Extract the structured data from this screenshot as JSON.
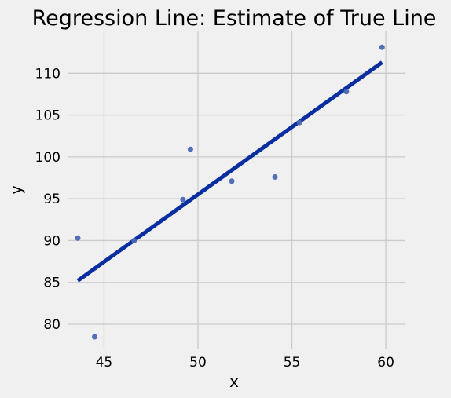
{
  "chart_data": {
    "type": "scatter",
    "title": "Regression Line: Estimate of True Line",
    "xlabel": "x",
    "ylabel": "y",
    "xlim": [
      43.1,
      61.0
    ],
    "ylim": [
      77.0,
      115.0
    ],
    "xticks": [
      45,
      50,
      55,
      60
    ],
    "yticks": [
      80,
      85,
      90,
      95,
      100,
      105,
      110
    ],
    "grid": true,
    "series": [
      {
        "type": "scatter",
        "color": "#4a67b5",
        "points": [
          {
            "x": 43.6,
            "y": 90.3
          },
          {
            "x": 44.5,
            "y": 78.5
          },
          {
            "x": 46.6,
            "y": 90.0
          },
          {
            "x": 49.2,
            "y": 94.9
          },
          {
            "x": 49.6,
            "y": 100.9
          },
          {
            "x": 51.8,
            "y": 97.1
          },
          {
            "x": 54.1,
            "y": 97.6
          },
          {
            "x": 55.4,
            "y": 104.1
          },
          {
            "x": 57.9,
            "y": 107.8
          },
          {
            "x": 59.8,
            "y": 113.1
          }
        ]
      },
      {
        "type": "line",
        "color": "#0a2ea0",
        "points": [
          {
            "x": 43.6,
            "y": 85.2
          },
          {
            "x": 59.8,
            "y": 111.3
          }
        ]
      }
    ]
  }
}
